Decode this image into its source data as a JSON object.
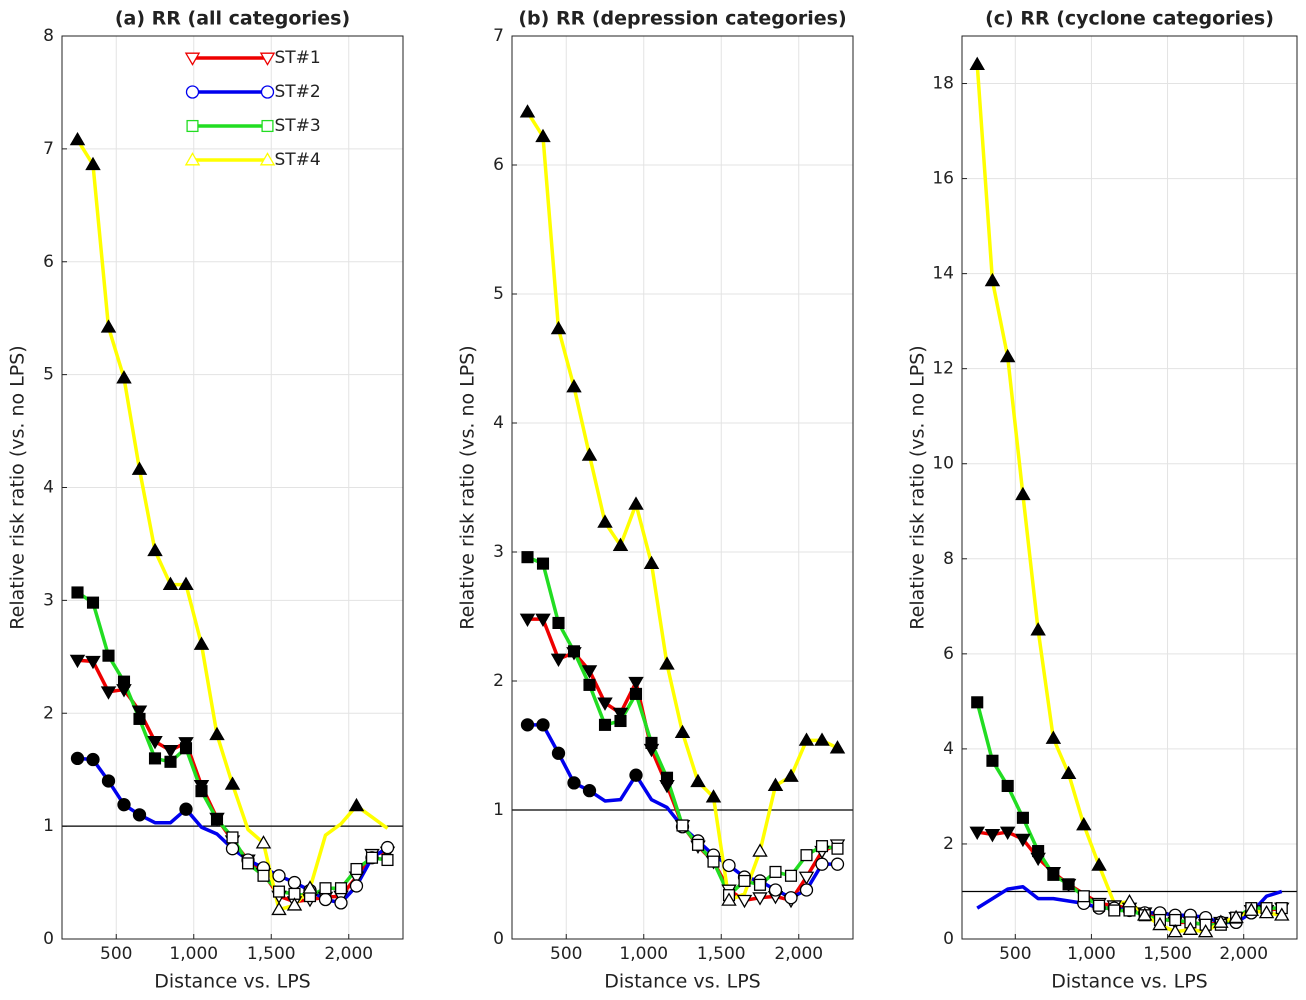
{
  "chart_data": [
    {
      "type": "line",
      "title": "(a) RR (all categories)",
      "x_label": "Distance vs. LPS",
      "y_label": "Relative risk ratio (vs. no LPS)",
      "x": [
        250,
        350,
        450,
        550,
        650,
        750,
        850,
        950,
        1050,
        1150,
        1250,
        1350,
        1450,
        1550,
        1650,
        1750,
        1850,
        1950,
        2050,
        2150,
        2250
      ],
      "xlim": [
        150,
        2350
      ],
      "xticks": [
        500,
        {
          "value": 1000,
          "label": "1,000"
        },
        {
          "value": 1500,
          "label": "1,500"
        },
        {
          "value": 2000,
          "label": "2,000"
        }
      ],
      "ylim": [
        0,
        8
      ],
      "yticks": [
        0,
        1,
        2,
        3,
        4,
        5,
        6,
        7,
        8
      ],
      "grid": true,
      "reference_line": 1,
      "legend": "north",
      "series": [
        {
          "name": "ST#1",
          "color": "#ee0000",
          "marker": "v",
          "values": [
            2.47,
            2.46,
            2.19,
            2.21,
            2.02,
            1.75,
            1.67,
            1.74,
            1.36,
            1.07,
            0.87,
            0.7,
            0.58,
            0.38,
            0.33,
            0.35,
            0.37,
            0.38,
            0.55,
            0.75,
            0.77
          ],
          "marker_fill": [
            "black",
            "black",
            "black",
            "black",
            "black",
            "black",
            "black",
            "black",
            "black",
            "black",
            "white",
            "white",
            "white",
            "white",
            "white",
            "white",
            "white",
            "white",
            "white",
            "white",
            "white"
          ]
        },
        {
          "name": "ST#2",
          "color": "#0000ee",
          "marker": "o",
          "values": [
            1.6,
            1.59,
            1.4,
            1.19,
            1.1,
            1.03,
            1.03,
            1.15,
            0.99,
            0.93,
            0.8,
            0.7,
            0.63,
            0.56,
            0.5,
            0.43,
            0.35,
            0.32,
            0.47,
            0.72,
            0.81
          ],
          "marker_fill": [
            "black",
            "black",
            "black",
            "black",
            "black",
            null,
            null,
            "black",
            null,
            null,
            "white",
            "white",
            "white",
            "white",
            "white",
            "white",
            "white",
            "white",
            "white",
            "white",
            "white"
          ]
        },
        {
          "name": "ST#3",
          "color": "#22dd22",
          "marker": "s",
          "values": [
            3.07,
            2.98,
            2.51,
            2.28,
            1.95,
            1.6,
            1.57,
            1.69,
            1.31,
            1.06,
            0.9,
            0.67,
            0.56,
            0.42,
            0.4,
            0.38,
            0.45,
            0.45,
            0.62,
            0.72,
            0.7
          ],
          "marker_fill": [
            "black",
            "black",
            "black",
            "black",
            "black",
            "black",
            "black",
            "black",
            "black",
            "black",
            "white",
            "white",
            "white",
            "white",
            "white",
            "white",
            "white",
            "white",
            "white",
            "white",
            "white"
          ]
        },
        {
          "name": "ST#4",
          "color": "#ffff00",
          "marker": "^",
          "values": [
            7.08,
            6.86,
            5.42,
            4.97,
            4.16,
            3.44,
            3.14,
            3.14,
            2.61,
            1.81,
            1.37,
            0.97,
            0.85,
            0.26,
            0.3,
            0.45,
            0.92,
            1.02,
            1.18,
            1.08,
            0.98
          ],
          "marker_fill": [
            "black",
            "black",
            "black",
            "black",
            "black",
            "black",
            "black",
            "black",
            "black",
            "black",
            "black",
            null,
            "white",
            "white",
            "white",
            "white",
            null,
            null,
            "black",
            null,
            null
          ]
        }
      ]
    },
    {
      "type": "line",
      "title": "(b) RR (depression categories)",
      "x_label": "Distance vs. LPS",
      "y_label": "Relative risk ratio (vs. no LPS)",
      "x": [
        250,
        350,
        450,
        550,
        650,
        750,
        850,
        950,
        1050,
        1150,
        1250,
        1350,
        1450,
        1550,
        1650,
        1750,
        1850,
        1950,
        2050,
        2150,
        2250
      ],
      "xlim": [
        150,
        2350
      ],
      "xticks": [
        500,
        {
          "value": 1000,
          "label": "1,000"
        },
        {
          "value": 1500,
          "label": "1,500"
        },
        {
          "value": 2000,
          "label": "2,000"
        }
      ],
      "ylim": [
        0,
        7
      ],
      "yticks": [
        0,
        1,
        2,
        3,
        4,
        5,
        6,
        7
      ],
      "grid": true,
      "reference_line": 1,
      "series": [
        {
          "color": "#ee0000",
          "marker": "v",
          "values": [
            2.48,
            2.48,
            2.17,
            2.22,
            2.08,
            1.83,
            1.75,
            1.99,
            1.47,
            1.19,
            0.88,
            0.72,
            0.6,
            0.38,
            0.3,
            0.32,
            0.33,
            0.3,
            0.48,
            0.68,
            0.73
          ],
          "marker_fill": [
            "black",
            "black",
            "black",
            "black",
            "black",
            "black",
            "black",
            "black",
            "black",
            "black",
            "white",
            "white",
            "white",
            "white",
            "white",
            "white",
            "white",
            "white",
            "white",
            "white",
            "white"
          ]
        },
        {
          "color": "#0000ee",
          "marker": "o",
          "values": [
            1.66,
            1.66,
            1.44,
            1.21,
            1.15,
            1.07,
            1.08,
            1.27,
            1.08,
            1.02,
            0.87,
            0.76,
            0.65,
            0.57,
            0.48,
            0.45,
            0.38,
            0.32,
            0.38,
            0.58,
            0.58
          ],
          "marker_fill": [
            "black",
            "black",
            "black",
            "black",
            "black",
            null,
            null,
            "black",
            null,
            null,
            "white",
            "white",
            "white",
            "white",
            "white",
            "white",
            "white",
            "white",
            "white",
            "white",
            "white"
          ]
        },
        {
          "color": "#22dd22",
          "marker": "s",
          "values": [
            2.96,
            2.91,
            2.45,
            2.23,
            1.97,
            1.66,
            1.69,
            1.9,
            1.52,
            1.25,
            0.88,
            0.73,
            0.6,
            0.34,
            0.45,
            0.42,
            0.52,
            0.49,
            0.65,
            0.72,
            0.7
          ],
          "marker_fill": [
            "black",
            "black",
            "black",
            "black",
            "black",
            "black",
            "black",
            "black",
            "black",
            "black",
            "white",
            "white",
            "white",
            "white",
            "white",
            "white",
            "white",
            "white",
            "white",
            "white",
            "white"
          ]
        },
        {
          "color": "#ffff00",
          "marker": "^",
          "values": [
            6.41,
            6.22,
            4.73,
            4.28,
            3.75,
            3.23,
            3.05,
            3.37,
            2.91,
            2.13,
            1.6,
            1.22,
            1.1,
            0.3,
            0.35,
            0.68,
            1.19,
            1.26,
            1.54,
            1.54,
            1.48
          ],
          "marker_fill": [
            "black",
            "black",
            "black",
            "black",
            "black",
            "black",
            "black",
            "black",
            "black",
            "black",
            "black",
            "black",
            "black",
            "white",
            null,
            "white",
            "black",
            "black",
            "black",
            "black",
            "black"
          ]
        }
      ]
    },
    {
      "type": "line",
      "title": "(c) RR (cyclone categories)",
      "x_label": "Distance vs. LPS",
      "y_label": "Relative risk ratio (vs. no LPS)",
      "x": [
        250,
        350,
        450,
        550,
        650,
        750,
        850,
        950,
        1050,
        1150,
        1250,
        1350,
        1450,
        1550,
        1650,
        1750,
        1850,
        1950,
        2050,
        2150,
        2250
      ],
      "xlim": [
        150,
        2350
      ],
      "xticks": [
        500,
        {
          "value": 1000,
          "label": "1,000"
        },
        {
          "value": 1500,
          "label": "1,500"
        },
        {
          "value": 2000,
          "label": "2,000"
        }
      ],
      "ylim": [
        0,
        19
      ],
      "yticks": [
        0,
        2,
        4,
        6,
        8,
        10,
        12,
        14,
        16,
        18
      ],
      "grid": true,
      "reference_line": 1,
      "series": [
        {
          "color": "#ee0000",
          "marker": "v",
          "values": [
            2.25,
            2.2,
            2.25,
            2.1,
            1.7,
            1.4,
            1.15,
            0.95,
            0.75,
            0.7,
            0.65,
            0.55,
            0.45,
            0.35,
            0.35,
            0.3,
            0.35,
            0.45,
            0.6,
            0.6,
            0.65
          ],
          "marker_fill": [
            "black",
            "black",
            "black",
            "black",
            "black",
            "black",
            "black",
            null,
            "white",
            "white",
            "white",
            "white",
            "white",
            "white",
            "white",
            "white",
            "white",
            "white",
            "white",
            "white",
            "white"
          ]
        },
        {
          "color": "#0000ee",
          "marker": "o",
          "values": [
            0.65,
            0.85,
            1.05,
            1.1,
            0.85,
            0.85,
            0.8,
            0.75,
            0.65,
            0.65,
            0.6,
            0.55,
            0.55,
            0.5,
            0.5,
            0.45,
            0.35,
            0.35,
            0.55,
            0.9,
            1.0
          ],
          "marker_fill": [
            null,
            null,
            null,
            null,
            null,
            null,
            null,
            "white",
            "white",
            "white",
            "white",
            "white",
            "white",
            "white",
            "white",
            "white",
            "white",
            "white",
            "white",
            null,
            null
          ]
        },
        {
          "color": "#22dd22",
          "marker": "s",
          "values": [
            4.98,
            3.75,
            3.22,
            2.55,
            1.85,
            1.35,
            1.15,
            0.9,
            0.7,
            0.6,
            0.6,
            0.5,
            0.4,
            0.4,
            0.35,
            0.3,
            0.3,
            0.45,
            0.65,
            0.65,
            0.65
          ],
          "marker_fill": [
            "black",
            "black",
            "black",
            "black",
            "black",
            "black",
            "black",
            "white",
            "white",
            "white",
            "white",
            "white",
            "white",
            "white",
            "white",
            "white",
            "white",
            "white",
            "white",
            "white",
            "white"
          ]
        },
        {
          "color": "#ffff00",
          "marker": "^",
          "values": [
            18.4,
            13.85,
            12.25,
            9.35,
            6.5,
            4.22,
            3.48,
            2.4,
            1.55,
            0.75,
            0.78,
            0.5,
            0.3,
            0.15,
            0.2,
            0.15,
            0.35,
            0.45,
            0.6,
            0.55,
            0.5
          ],
          "marker_fill": [
            "black",
            "black",
            "black",
            "black",
            "black",
            "black",
            "black",
            "black",
            "black",
            null,
            "white",
            "white",
            "white",
            "white",
            "white",
            "white",
            "white",
            "white",
            "white",
            "white",
            "white"
          ]
        }
      ]
    }
  ]
}
